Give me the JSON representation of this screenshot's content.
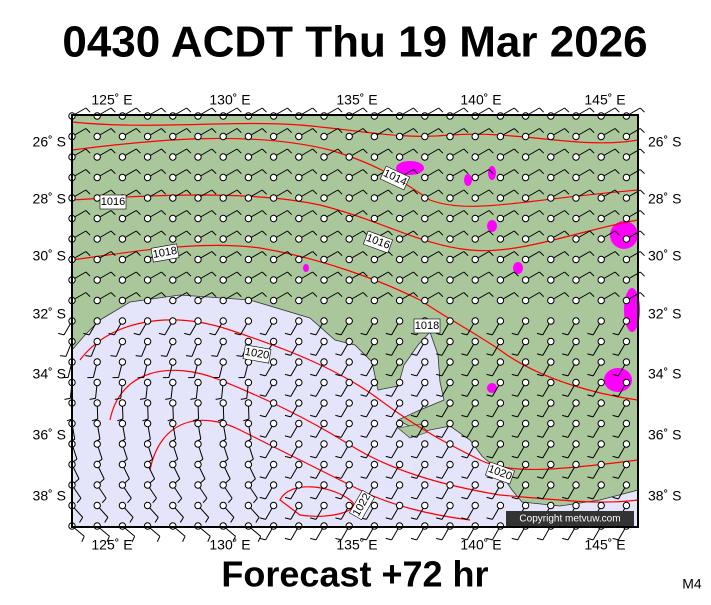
{
  "header": {
    "title": "0430 ACDT Thu 19 Mar 2026"
  },
  "map": {
    "lon_labels": [
      "125˚ E",
      "130˚ E",
      "135˚ E",
      "140˚ E",
      "145˚ E"
    ],
    "lat_labels": [
      "26˚ S",
      "28˚ S",
      "30˚ S",
      "32˚ S",
      "34˚ S",
      "36˚ S",
      "38˚ S"
    ],
    "isobar_labels": [
      "1014",
      "1016",
      "1018",
      "1016",
      "1018",
      "1020",
      "1020",
      "1022"
    ],
    "copyright": "Copyright metvuw.com"
  },
  "footer": {
    "forecast": "Forecast +72 hr",
    "code": "M4"
  }
}
